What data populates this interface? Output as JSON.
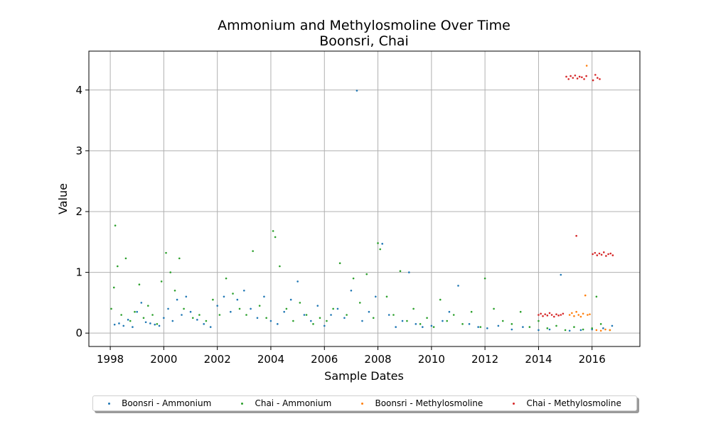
{
  "chart_data": {
    "type": "scatter",
    "title": "Ammonium and Methylosmoline Over Time",
    "subtitle": "Boonsri, Chai",
    "xlabel": "Sample Dates",
    "ylabel": "Value",
    "x_ticks": [
      "1998",
      "2000",
      "2002",
      "2004",
      "2006",
      "2008",
      "2010",
      "2012",
      "2014",
      "2016"
    ],
    "y_ticks": [
      "0",
      "1",
      "2",
      "3",
      "4"
    ],
    "xlim": [
      "1997-03-15",
      "2017-10-15"
    ],
    "ylim": [
      -0.22,
      4.64
    ],
    "grid": true,
    "legend_position": "bottom-center",
    "series": [
      {
        "name": "Boonsri - Ammonium",
        "color": "#1f77b4",
        "points": [
          [
            "1998-03-01",
            0.14
          ],
          [
            "1998-05-01",
            0.16
          ],
          [
            "1998-07-01",
            0.12
          ],
          [
            "1998-09-01",
            0.22
          ],
          [
            "1998-11-01",
            0.1
          ],
          [
            "1999-01-01",
            0.35
          ],
          [
            "1999-03-01",
            0.5
          ],
          [
            "1999-05-01",
            0.18
          ],
          [
            "1999-07-01",
            0.16
          ],
          [
            "1999-09-01",
            0.14
          ],
          [
            "1999-11-01",
            0.12
          ],
          [
            "2000-01-01",
            0.25
          ],
          [
            "2000-03-01",
            0.4
          ],
          [
            "2000-05-01",
            0.2
          ],
          [
            "2000-07-01",
            0.55
          ],
          [
            "2000-09-01",
            0.3
          ],
          [
            "2000-11-01",
            0.6
          ],
          [
            "2001-01-01",
            0.35
          ],
          [
            "2001-04-01",
            0.22
          ],
          [
            "2001-07-01",
            0.15
          ],
          [
            "2001-10-01",
            0.1
          ],
          [
            "2002-01-01",
            0.45
          ],
          [
            "2002-04-01",
            0.6
          ],
          [
            "2002-07-01",
            0.35
          ],
          [
            "2002-10-01",
            0.55
          ],
          [
            "2003-01-01",
            0.7
          ],
          [
            "2003-04-01",
            0.4
          ],
          [
            "2003-07-01",
            0.25
          ],
          [
            "2003-10-01",
            0.6
          ],
          [
            "2004-01-01",
            0.2
          ],
          [
            "2004-04-01",
            0.15
          ],
          [
            "2004-07-01",
            0.35
          ],
          [
            "2004-10-01",
            0.55
          ],
          [
            "2005-01-01",
            0.85
          ],
          [
            "2005-04-01",
            0.3
          ],
          [
            "2005-07-01",
            0.2
          ],
          [
            "2005-10-01",
            0.45
          ],
          [
            "2006-01-01",
            0.12
          ],
          [
            "2006-04-01",
            0.3
          ],
          [
            "2006-07-01",
            0.4
          ],
          [
            "2006-10-01",
            0.25
          ],
          [
            "2007-01-01",
            0.7
          ],
          [
            "2007-03-20",
            3.99
          ],
          [
            "2007-06-01",
            0.2
          ],
          [
            "2007-09-01",
            0.35
          ],
          [
            "2007-12-01",
            0.6
          ],
          [
            "2008-03-01",
            1.47
          ],
          [
            "2008-06-01",
            0.3
          ],
          [
            "2008-09-01",
            0.1
          ],
          [
            "2008-12-01",
            0.2
          ],
          [
            "2009-03-01",
            1.0
          ],
          [
            "2009-06-01",
            0.15
          ],
          [
            "2009-09-01",
            0.1
          ],
          [
            "2010-01-01",
            0.12
          ],
          [
            "2010-06-01",
            0.2
          ],
          [
            "2010-09-01",
            0.35
          ],
          [
            "2011-01-01",
            0.78
          ],
          [
            "2011-06-01",
            0.15
          ],
          [
            "2011-10-01",
            0.1
          ],
          [
            "2012-02-01",
            0.08
          ],
          [
            "2012-07-01",
            0.12
          ],
          [
            "2013-01-01",
            0.06
          ],
          [
            "2013-06-01",
            0.1
          ],
          [
            "2014-01-01",
            0.05
          ],
          [
            "2014-06-01",
            0.06
          ],
          [
            "2014-11-01",
            0.96
          ],
          [
            "2015-03-01",
            0.04
          ],
          [
            "2015-08-01",
            0.05
          ],
          [
            "2016-01-01",
            0.06
          ],
          [
            "2016-06-01",
            0.08
          ],
          [
            "2016-10-01",
            0.12
          ]
        ]
      },
      {
        "name": "Chai - Ammonium",
        "color": "#2ca02c",
        "points": [
          [
            "1998-01-15",
            0.4
          ],
          [
            "1998-02-20",
            0.75
          ],
          [
            "1998-03-10",
            1.77
          ],
          [
            "1998-04-10",
            1.1
          ],
          [
            "1998-06-01",
            0.3
          ],
          [
            "1998-08-01",
            1.23
          ],
          [
            "1998-10-01",
            0.2
          ],
          [
            "1998-12-01",
            0.35
          ],
          [
            "1999-02-01",
            0.8
          ],
          [
            "1999-04-01",
            0.25
          ],
          [
            "1999-06-01",
            0.45
          ],
          [
            "1999-08-01",
            0.3
          ],
          [
            "1999-10-01",
            0.15
          ],
          [
            "1999-12-01",
            0.85
          ],
          [
            "2000-02-01",
            1.32
          ],
          [
            "2000-04-01",
            1.0
          ],
          [
            "2000-06-01",
            0.7
          ],
          [
            "2000-08-01",
            1.23
          ],
          [
            "2000-10-01",
            0.4
          ],
          [
            "2001-02-01",
            0.25
          ],
          [
            "2001-05-01",
            0.3
          ],
          [
            "2001-08-01",
            0.2
          ],
          [
            "2001-11-01",
            0.55
          ],
          [
            "2002-02-01",
            0.3
          ],
          [
            "2002-05-01",
            0.9
          ],
          [
            "2002-08-01",
            0.65
          ],
          [
            "2002-11-01",
            0.4
          ],
          [
            "2003-02-01",
            0.3
          ],
          [
            "2003-05-01",
            1.35
          ],
          [
            "2003-08-01",
            0.45
          ],
          [
            "2003-11-01",
            0.25
          ],
          [
            "2004-02-01",
            1.68
          ],
          [
            "2004-03-01",
            1.58
          ],
          [
            "2004-05-01",
            1.1
          ],
          [
            "2004-08-01",
            0.4
          ],
          [
            "2004-11-01",
            0.2
          ],
          [
            "2005-02-01",
            0.5
          ],
          [
            "2005-05-01",
            0.3
          ],
          [
            "2005-08-01",
            0.15
          ],
          [
            "2005-11-01",
            0.25
          ],
          [
            "2006-02-01",
            0.2
          ],
          [
            "2006-05-01",
            0.4
          ],
          [
            "2006-08-01",
            1.15
          ],
          [
            "2006-11-01",
            0.3
          ],
          [
            "2007-02-01",
            0.9
          ],
          [
            "2007-05-01",
            0.5
          ],
          [
            "2007-08-01",
            0.97
          ],
          [
            "2007-11-01",
            0.25
          ],
          [
            "2008-01-01",
            1.48
          ],
          [
            "2008-02-01",
            1.38
          ],
          [
            "2008-05-01",
            0.6
          ],
          [
            "2008-08-01",
            0.3
          ],
          [
            "2008-11-01",
            1.02
          ],
          [
            "2009-02-01",
            0.2
          ],
          [
            "2009-05-01",
            0.4
          ],
          [
            "2009-08-01",
            0.15
          ],
          [
            "2009-11-01",
            0.25
          ],
          [
            "2010-02-01",
            0.1
          ],
          [
            "2010-05-01",
            0.55
          ],
          [
            "2010-08-01",
            0.2
          ],
          [
            "2010-11-01",
            0.3
          ],
          [
            "2011-03-01",
            0.15
          ],
          [
            "2011-07-01",
            0.35
          ],
          [
            "2011-11-01",
            0.1
          ],
          [
            "2012-01-01",
            0.9
          ],
          [
            "2012-05-01",
            0.4
          ],
          [
            "2012-09-01",
            0.2
          ],
          [
            "2013-01-01",
            0.15
          ],
          [
            "2013-05-01",
            0.35
          ],
          [
            "2013-09-01",
            0.1
          ],
          [
            "2014-01-01",
            0.2
          ],
          [
            "2014-05-01",
            0.08
          ],
          [
            "2014-09-01",
            0.12
          ],
          [
            "2015-01-01",
            0.05
          ],
          [
            "2015-05-01",
            0.1
          ],
          [
            "2015-09-01",
            0.06
          ],
          [
            "2016-01-01",
            0.08
          ],
          [
            "2016-03-01",
            0.6
          ],
          [
            "2016-05-01",
            0.15
          ],
          [
            "2016-09-01",
            0.05
          ]
        ]
      },
      {
        "name": "Boonsri - Methylosmoline",
        "color": "#ff7f0e",
        "points": [
          [
            "2015-03-01",
            0.3
          ],
          [
            "2015-04-01",
            0.33
          ],
          [
            "2015-05-01",
            0.28
          ],
          [
            "2015-06-01",
            0.35
          ],
          [
            "2015-07-01",
            0.3
          ],
          [
            "2015-08-01",
            0.27
          ],
          [
            "2015-09-01",
            0.32
          ],
          [
            "2015-10-01",
            0.62
          ],
          [
            "2015-11-01",
            0.3
          ],
          [
            "2015-12-01",
            0.31
          ],
          [
            "2015-10-20",
            4.4
          ],
          [
            "2016-03-01",
            0.05
          ],
          [
            "2016-05-01",
            0.04
          ],
          [
            "2016-07-01",
            0.06
          ],
          [
            "2016-09-01",
            0.05
          ]
        ]
      },
      {
        "name": "Chai - Methylosmoline",
        "color": "#d62728",
        "points": [
          [
            "2014-01-01",
            0.3
          ],
          [
            "2014-02-01",
            0.32
          ],
          [
            "2014-03-01",
            0.28
          ],
          [
            "2014-04-01",
            0.31
          ],
          [
            "2014-05-01",
            0.29
          ],
          [
            "2014-06-01",
            0.33
          ],
          [
            "2014-07-01",
            0.3
          ],
          [
            "2014-08-01",
            0.27
          ],
          [
            "2014-09-01",
            0.31
          ],
          [
            "2014-10-01",
            0.29
          ],
          [
            "2014-11-01",
            0.3
          ],
          [
            "2014-12-01",
            0.32
          ],
          [
            "2015-01-15",
            4.22
          ],
          [
            "2015-02-15",
            4.18
          ],
          [
            "2015-03-15",
            4.23
          ],
          [
            "2015-04-15",
            4.2
          ],
          [
            "2015-05-15",
            4.24
          ],
          [
            "2015-06-01",
            1.6
          ],
          [
            "2015-06-15",
            4.19
          ],
          [
            "2015-07-15",
            4.22
          ],
          [
            "2015-08-15",
            4.21
          ],
          [
            "2015-09-15",
            4.18
          ],
          [
            "2015-10-15",
            4.23
          ],
          [
            "2016-01-15",
            4.16
          ],
          [
            "2016-02-15",
            4.25
          ],
          [
            "2016-03-15",
            4.2
          ],
          [
            "2016-04-15",
            4.18
          ],
          [
            "2016-01-10",
            1.3
          ],
          [
            "2016-02-10",
            1.32
          ],
          [
            "2016-03-10",
            1.28
          ],
          [
            "2016-04-10",
            1.31
          ],
          [
            "2016-05-10",
            1.29
          ],
          [
            "2016-06-10",
            1.33
          ],
          [
            "2016-07-10",
            1.27
          ],
          [
            "2016-08-10",
            1.3
          ],
          [
            "2016-09-10",
            1.31
          ],
          [
            "2016-10-10",
            1.28
          ]
        ]
      }
    ]
  }
}
